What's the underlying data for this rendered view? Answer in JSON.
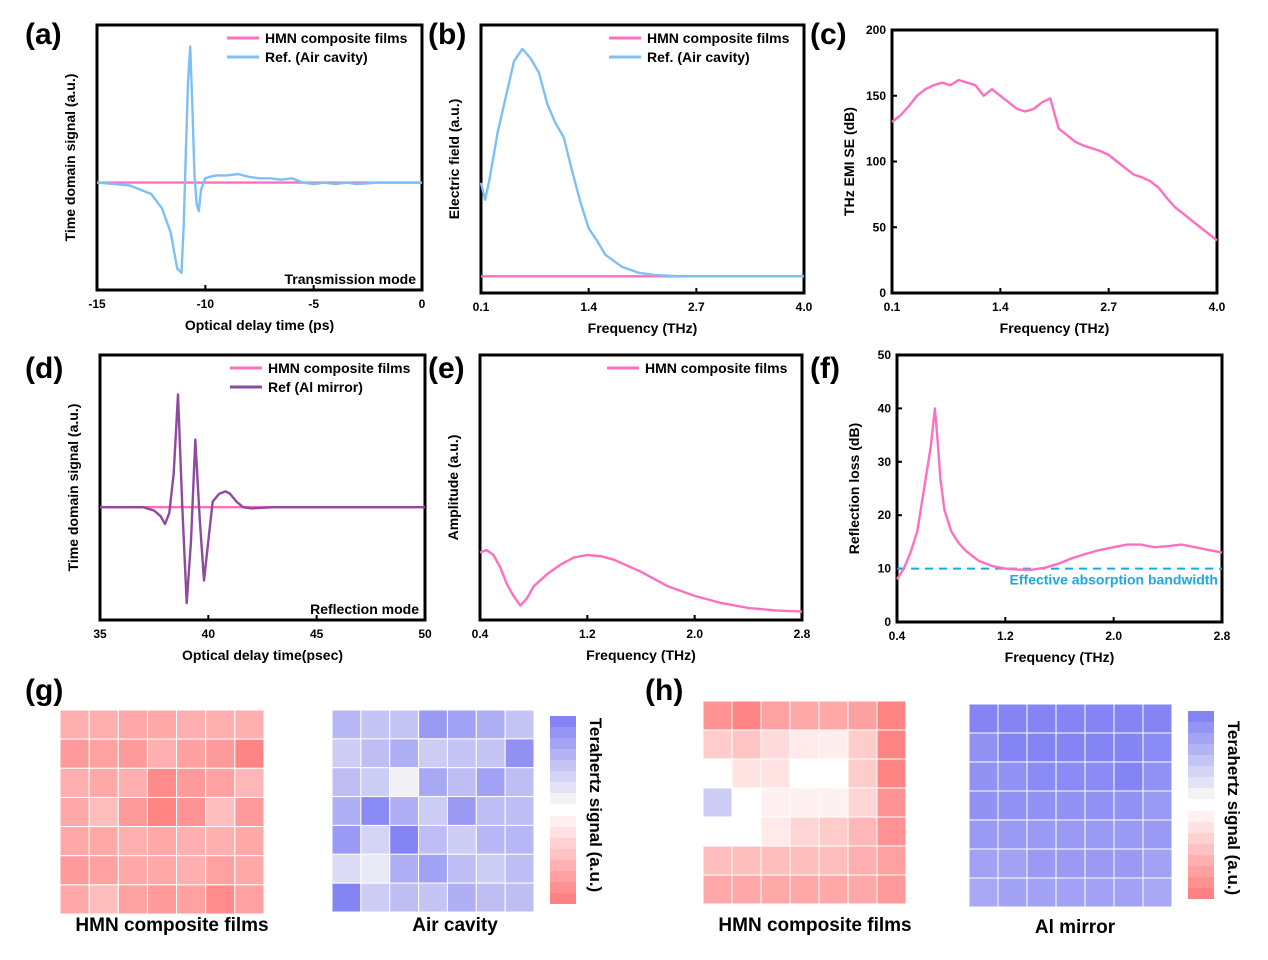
{
  "colors": {
    "pink": "#FF6FC0",
    "lightblue": "#7EC0F5",
    "purple": "#8E4A9E",
    "dashed": "#1EA7E6",
    "heat_red": "#FF6E6E",
    "heat_blue": "#6E6EF5"
  },
  "panels": {
    "a": {
      "label": "(a)"
    },
    "b": {
      "label": "(b)"
    },
    "c": {
      "label": "(c)"
    },
    "d": {
      "label": "(d)"
    },
    "e": {
      "label": "(e)"
    },
    "f": {
      "label": "(f)"
    },
    "g": {
      "label": "(g)",
      "map1_label": "HMN composite films",
      "map2_label": "Air cavity",
      "colorbar_label": "Terahertz signal (a.u.)"
    },
    "h": {
      "label": "(h)",
      "map1_label": "HMN composite films",
      "map2_label": "Al mirror",
      "colorbar_label": "Terahertz signal (a.u.)"
    }
  },
  "chart_data": [
    {
      "id": "a",
      "type": "line",
      "xlabel": "Optical delay time (ps)",
      "ylabel": "Time domain signal (a.u.)",
      "xlim": [
        -15,
        0
      ],
      "xticks": [
        "-15",
        "-10",
        "-5",
        "0"
      ],
      "note": "Transmission mode",
      "legend_position": "top-right",
      "series": [
        {
          "name": "HMN composite films",
          "color": "pink",
          "x": [
            -15,
            0
          ],
          "y": [
            0,
            0
          ]
        },
        {
          "name": "Ref. (Air cavity)",
          "color": "lightblue",
          "x": [
            -15,
            -13.5,
            -12.5,
            -12,
            -11.6,
            -11.3,
            -11.1,
            -11.0,
            -10.9,
            -10.8,
            -10.7,
            -10.6,
            -10.5,
            -10.4,
            -10.3,
            -10.2,
            -10.0,
            -9.8,
            -9.5,
            -9,
            -8.5,
            -8,
            -7.5,
            -7,
            -6.5,
            -6,
            -5.5,
            -5,
            -4.5,
            -4,
            -3.5,
            -3,
            -2,
            -1,
            0
          ],
          "y": [
            0,
            -0.02,
            -0.08,
            -0.18,
            -0.35,
            -0.6,
            -0.63,
            -0.3,
            0.2,
            0.7,
            0.95,
            0.55,
            0.05,
            -0.15,
            -0.2,
            -0.05,
            0.03,
            0.04,
            0.05,
            0.05,
            0.06,
            0.04,
            0.03,
            0.03,
            0.02,
            0.03,
            0.0,
            -0.01,
            0.0,
            -0.01,
            0.0,
            -0.01,
            0.0,
            0.0,
            0.0
          ]
        }
      ]
    },
    {
      "id": "b",
      "type": "line",
      "xlabel": "Frequency (THz)",
      "ylabel": "Electric field (a.u.)",
      "xlim": [
        0.1,
        4.0
      ],
      "xticks": [
        "0.1",
        "1.4",
        "2.7",
        "4.0"
      ],
      "legend_position": "top-right",
      "series": [
        {
          "name": "HMN composite films",
          "color": "pink",
          "x": [
            0.1,
            4.0
          ],
          "y": [
            0,
            0
          ]
        },
        {
          "name": "Ref. (Air cavity)",
          "color": "lightblue",
          "x": [
            0.1,
            0.15,
            0.2,
            0.3,
            0.4,
            0.5,
            0.6,
            0.7,
            0.8,
            0.9,
            1.0,
            1.1,
            1.2,
            1.3,
            1.4,
            1.5,
            1.6,
            1.8,
            2.0,
            2.2,
            2.5,
            2.7,
            3.0,
            4.0
          ],
          "y": [
            0.39,
            0.32,
            0.4,
            0.6,
            0.75,
            0.9,
            0.95,
            0.91,
            0.85,
            0.72,
            0.64,
            0.58,
            0.44,
            0.31,
            0.2,
            0.15,
            0.09,
            0.04,
            0.015,
            0.005,
            0.0,
            0.0,
            0.0,
            0.0
          ]
        }
      ]
    },
    {
      "id": "c",
      "type": "line",
      "xlabel": "Frequency (THz)",
      "ylabel": "THz EMI SE (dB)",
      "xlim": [
        0.1,
        4.0
      ],
      "ylim": [
        0,
        200
      ],
      "xticks": [
        "0.1",
        "1.4",
        "2.7",
        "4.0"
      ],
      "yticks": [
        "0",
        "50",
        "100",
        "150",
        "200"
      ],
      "series": [
        {
          "name": "",
          "color": "pink",
          "x": [
            0.1,
            0.2,
            0.3,
            0.4,
            0.5,
            0.6,
            0.7,
            0.8,
            0.9,
            1.0,
            1.1,
            1.2,
            1.3,
            1.4,
            1.5,
            1.6,
            1.7,
            1.8,
            1.9,
            2.0,
            2.1,
            2.2,
            2.3,
            2.4,
            2.5,
            2.6,
            2.7,
            2.8,
            2.9,
            3.0,
            3.1,
            3.2,
            3.3,
            3.4,
            3.5,
            3.6,
            3.7,
            3.8,
            3.9,
            4.0
          ],
          "y": [
            130,
            135,
            142,
            150,
            155,
            158,
            160,
            158,
            162,
            160,
            158,
            150,
            155,
            150,
            145,
            140,
            138,
            140,
            145,
            148,
            125,
            120,
            115,
            112,
            110,
            108,
            105,
            100,
            95,
            90,
            88,
            85,
            80,
            72,
            65,
            60,
            55,
            50,
            45,
            40
          ]
        }
      ]
    },
    {
      "id": "d",
      "type": "line",
      "xlabel": "Optical delay time(psec)",
      "ylabel": "Time domain signal (a.u.)",
      "xlim": [
        35,
        50
      ],
      "xticks": [
        "35",
        "40",
        "45",
        "50"
      ],
      "note": "Reflection mode",
      "legend_position": "top-right",
      "series": [
        {
          "name": "HMN composite films",
          "color": "pink",
          "x": [
            35,
            50
          ],
          "y": [
            0,
            0
          ]
        },
        {
          "name": "Ref (Al mirror)",
          "color": "purple",
          "x": [
            35,
            37,
            37.5,
            37.8,
            38.0,
            38.2,
            38.4,
            38.6,
            38.8,
            39.0,
            39.2,
            39.4,
            39.6,
            39.8,
            40.0,
            40.2,
            40.5,
            40.8,
            41.0,
            41.3,
            41.6,
            42,
            43,
            44,
            45,
            46,
            47,
            48,
            49,
            50
          ],
          "y": [
            0,
            0,
            -0.03,
            -0.08,
            -0.15,
            -0.05,
            0.3,
            1.0,
            0.0,
            -0.85,
            -0.3,
            0.6,
            -0.1,
            -0.65,
            -0.3,
            0.05,
            0.12,
            0.14,
            0.12,
            0.05,
            0.0,
            -0.01,
            0.0,
            0.0,
            0.0,
            0.0,
            0.0,
            0.0,
            0.0,
            0.0
          ]
        }
      ]
    },
    {
      "id": "e",
      "type": "line",
      "xlabel": "Frequency (THz)",
      "ylabel": "Amplitude (a.u.)",
      "xlim": [
        0.4,
        2.8
      ],
      "xticks": [
        "0.4",
        "1.2",
        "2.0",
        "2.8"
      ],
      "legend_position": "top-right",
      "series": [
        {
          "name": "HMN composite films",
          "color": "pink",
          "x": [
            0.4,
            0.45,
            0.5,
            0.55,
            0.6,
            0.65,
            0.7,
            0.75,
            0.8,
            0.9,
            1.0,
            1.1,
            1.2,
            1.3,
            1.4,
            1.6,
            1.8,
            2.0,
            2.2,
            2.4,
            2.6,
            2.8
          ],
          "y": [
            0.28,
            0.29,
            0.27,
            0.22,
            0.15,
            0.1,
            0.06,
            0.09,
            0.14,
            0.19,
            0.23,
            0.26,
            0.27,
            0.265,
            0.25,
            0.2,
            0.14,
            0.1,
            0.07,
            0.05,
            0.04,
            0.035
          ]
        }
      ]
    },
    {
      "id": "f",
      "type": "line",
      "xlabel": "Frequency (THz)",
      "ylabel": "Reflection loss (dB)",
      "xlim": [
        0.4,
        2.8
      ],
      "ylim": [
        0,
        50
      ],
      "xticks": [
        "0.4",
        "1.2",
        "2.0",
        "2.8"
      ],
      "yticks": [
        "0",
        "10",
        "20",
        "30",
        "40",
        "50"
      ],
      "note": "Effective absorption bandwidth",
      "threshold": 10,
      "series": [
        {
          "name": "",
          "color": "pink",
          "x": [
            0.4,
            0.45,
            0.5,
            0.55,
            0.6,
            0.65,
            0.68,
            0.7,
            0.72,
            0.75,
            0.8,
            0.85,
            0.9,
            1.0,
            1.1,
            1.2,
            1.3,
            1.4,
            1.5,
            1.6,
            1.7,
            1.8,
            1.9,
            2.0,
            2.1,
            2.2,
            2.3,
            2.4,
            2.5,
            2.6,
            2.7,
            2.8
          ],
          "y": [
            8,
            10,
            13,
            17,
            25,
            33,
            40,
            34,
            27,
            21,
            17,
            15,
            13.5,
            11.5,
            10.5,
            10,
            9.8,
            9.8,
            10.2,
            11,
            12,
            12.8,
            13.5,
            14,
            14.5,
            14.5,
            14,
            14.2,
            14.5,
            14,
            13.5,
            13
          ]
        }
      ]
    },
    {
      "id": "g",
      "type": "heatmap",
      "rows": 7,
      "cols": 7,
      "maps": [
        {
          "title": "HMN composite films",
          "scale": "red",
          "values": [
            [
              0.55,
              0.55,
              0.6,
              0.6,
              0.55,
              0.55,
              0.55
            ],
            [
              0.7,
              0.65,
              0.7,
              0.55,
              0.65,
              0.7,
              0.85
            ],
            [
              0.55,
              0.6,
              0.55,
              0.8,
              0.7,
              0.65,
              0.5
            ],
            [
              0.6,
              0.45,
              0.7,
              0.85,
              0.75,
              0.45,
              0.7
            ],
            [
              0.6,
              0.6,
              0.55,
              0.6,
              0.55,
              0.55,
              0.6
            ],
            [
              0.7,
              0.65,
              0.6,
              0.6,
              0.55,
              0.65,
              0.6
            ],
            [
              0.6,
              0.45,
              0.65,
              0.7,
              0.65,
              0.8,
              0.65
            ]
          ]
        },
        {
          "title": "Air cavity",
          "scale": "blue",
          "values": [
            [
              0.5,
              0.4,
              0.4,
              0.7,
              0.65,
              0.55,
              0.4
            ],
            [
              0.35,
              0.45,
              0.55,
              0.35,
              0.4,
              0.4,
              0.75
            ],
            [
              0.45,
              0.35,
              0.1,
              0.6,
              0.45,
              0.65,
              0.45
            ],
            [
              0.55,
              0.8,
              0.55,
              0.35,
              0.7,
              0.45,
              0.45
            ],
            [
              0.7,
              0.3,
              0.85,
              0.45,
              0.35,
              0.5,
              0.5
            ],
            [
              0.25,
              0.15,
              0.55,
              0.65,
              0.45,
              0.35,
              0.45
            ],
            [
              0.85,
              0.35,
              0.45,
              0.4,
              0.55,
              0.45,
              0.45
            ]
          ]
        }
      ]
    },
    {
      "id": "h",
      "type": "heatmap",
      "rows": 7,
      "cols": 7,
      "maps": [
        {
          "title": "HMN composite films",
          "scale": "red",
          "values": [
            [
              0.75,
              0.85,
              0.65,
              0.6,
              0.6,
              0.65,
              0.85
            ],
            [
              0.35,
              0.4,
              0.25,
              0.15,
              0.12,
              0.35,
              0.85
            ],
            [
              0.0,
              0.2,
              0.2,
              0.0,
              0.0,
              0.35,
              0.85
            ],
            [
              -0.35,
              0.0,
              0.1,
              0.1,
              0.1,
              0.3,
              0.75
            ],
            [
              0.0,
              0.0,
              0.15,
              0.3,
              0.35,
              0.5,
              0.75
            ],
            [
              0.45,
              0.45,
              0.45,
              0.45,
              0.45,
              0.55,
              0.65
            ],
            [
              0.6,
              0.6,
              0.6,
              0.6,
              0.6,
              0.6,
              0.7
            ]
          ]
        },
        {
          "title": "Al mirror",
          "scale": "blue",
          "values": [
            [
              0.85,
              0.85,
              0.85,
              0.85,
              0.85,
              0.85,
              0.85
            ],
            [
              0.75,
              0.85,
              0.85,
              0.85,
              0.85,
              0.85,
              0.8
            ],
            [
              0.75,
              0.75,
              0.8,
              0.8,
              0.8,
              0.85,
              0.75
            ],
            [
              0.75,
              0.75,
              0.75,
              0.75,
              0.75,
              0.75,
              0.7
            ],
            [
              0.7,
              0.7,
              0.7,
              0.7,
              0.7,
              0.7,
              0.7
            ],
            [
              0.65,
              0.65,
              0.7,
              0.7,
              0.7,
              0.7,
              0.65
            ],
            [
              0.6,
              0.65,
              0.65,
              0.65,
              0.65,
              0.65,
              0.6
            ]
          ]
        }
      ]
    }
  ]
}
